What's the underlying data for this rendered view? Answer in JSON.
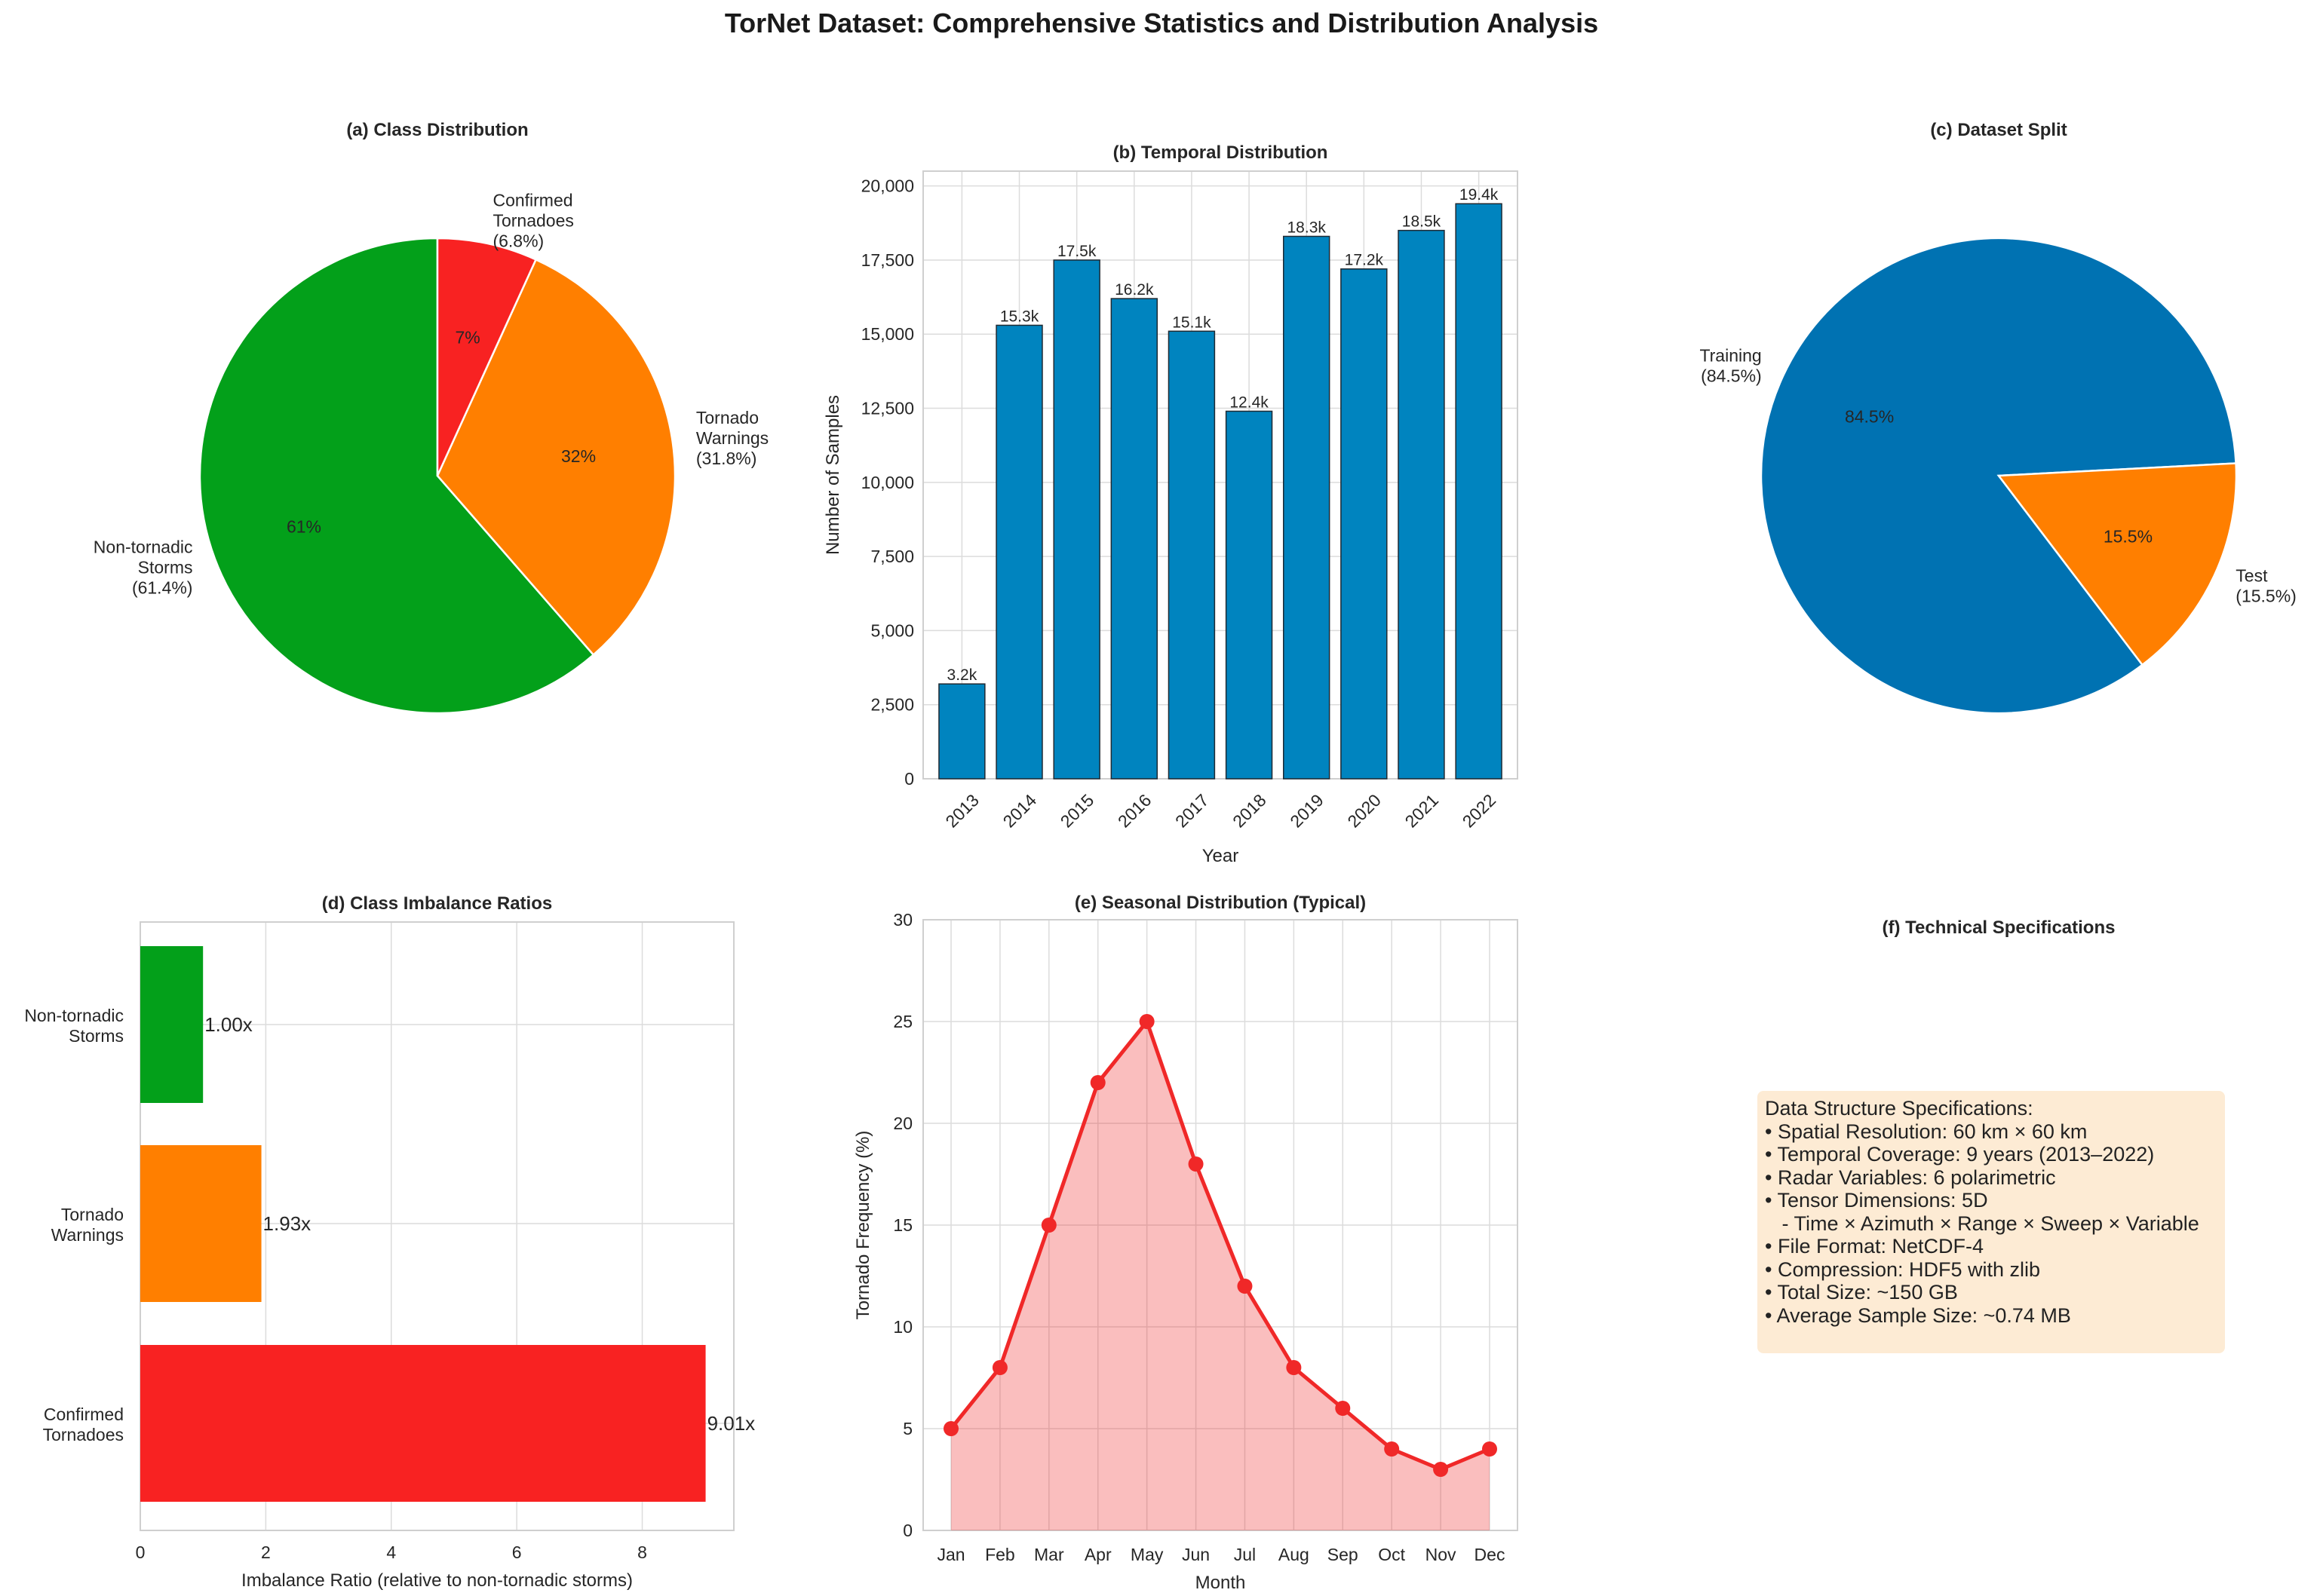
{
  "suptitle": "TorNet Dataset: Comprehensive Statistics and Distribution Analysis",
  "chart_data": [
    {
      "id": "a",
      "type": "pie",
      "title": "(a) Class Distribution",
      "slices": [
        {
          "label": "Non-tornadic\nStorms\n(61.4%)",
          "value": 61.4,
          "pct_label": "61%",
          "color": "#03a01a"
        },
        {
          "label": "Tornado\nWarnings\n(31.8%)",
          "value": 31.8,
          "pct_label": "32%",
          "color": "#ff7f00"
        },
        {
          "label": "Confirmed\nTornadoes\n(6.8%)",
          "value": 6.8,
          "pct_label": "7%",
          "color": "#f82222"
        }
      ]
    },
    {
      "id": "b",
      "type": "bar",
      "title": "(b) Temporal Distribution",
      "xlabel": "Year",
      "ylabel": "Number of Samples",
      "categories": [
        "2013",
        "2014",
        "2015",
        "2016",
        "2017",
        "2018",
        "2019",
        "2020",
        "2021",
        "2022"
      ],
      "values": [
        3200,
        15300,
        17500,
        16200,
        15100,
        12400,
        18300,
        17200,
        18500,
        19400
      ],
      "value_labels": [
        "3.2k",
        "15.3k",
        "17.5k",
        "16.2k",
        "15.1k",
        "12.4k",
        "18.3k",
        "17.2k",
        "18.5k",
        "19.4k"
      ],
      "yticks": [
        "0",
        "2,500",
        "5,000",
        "7,500",
        "10,000",
        "12,500",
        "15,000",
        "17,500",
        "20,000"
      ],
      "ylim": [
        0,
        20500
      ],
      "color": "#0084bf"
    },
    {
      "id": "c",
      "type": "pie",
      "title": "(c) Dataset Split",
      "slices": [
        {
          "label": "Training\n(84.5%)",
          "value": 84.5,
          "pct_label": "84.5%",
          "color": "#0072b2"
        },
        {
          "label": "Test\n(15.5%)",
          "value": 15.5,
          "pct_label": "15.5%",
          "color": "#ff7f00"
        }
      ]
    },
    {
      "id": "d",
      "type": "bar",
      "orientation": "horizontal",
      "title": "(d) Class Imbalance Ratios",
      "xlabel": "Imbalance Ratio (relative to non-tornadic storms)",
      "categories": [
        "Non-tornadic\nStorms",
        "Tornado\nWarnings",
        "Confirmed\nTornadoes"
      ],
      "values": [
        1.0,
        1.93,
        9.01
      ],
      "value_labels": [
        "1.00x",
        "1.93x",
        "9.01x"
      ],
      "colors": [
        "#03a01a",
        "#ff7f00",
        "#f82222"
      ],
      "xticks": [
        "0",
        "2",
        "4",
        "6",
        "8"
      ],
      "xlim": [
        0,
        9.46
      ]
    },
    {
      "id": "e",
      "type": "area",
      "title": "(e) Seasonal Distribution (Typical)",
      "xlabel": "Month",
      "ylabel": "Tornado Frequency (%)",
      "categories": [
        "Jan",
        "Feb",
        "Mar",
        "Apr",
        "May",
        "Jun",
        "Jul",
        "Aug",
        "Sep",
        "Oct",
        "Nov",
        "Dec"
      ],
      "values": [
        5,
        8,
        15,
        22,
        25,
        18,
        12,
        8,
        6,
        4,
        3,
        4
      ],
      "yticks": [
        "0",
        "5",
        "10",
        "15",
        "20",
        "25",
        "30"
      ],
      "ylim": [
        0,
        30
      ],
      "color": "#f02828"
    }
  ],
  "specs": {
    "title": "(f) Technical Specifications",
    "lines": [
      "Data Structure Specifications:",
      "",
      "• Spatial Resolution: 60 km × 60 km",
      "• Temporal Coverage: 9 years (2013–2022)",
      "• Radar Variables: 6 polarimetric",
      "• Tensor Dimensions: 5D",
      "   - Time × Azimuth × Range × Sweep × Variable",
      "• File Format: NetCDF-4",
      "• Compression: HDF5 with zlib",
      "• Total Size: ~150 GB",
      "• Average Sample Size: ~0.74 MB"
    ]
  }
}
